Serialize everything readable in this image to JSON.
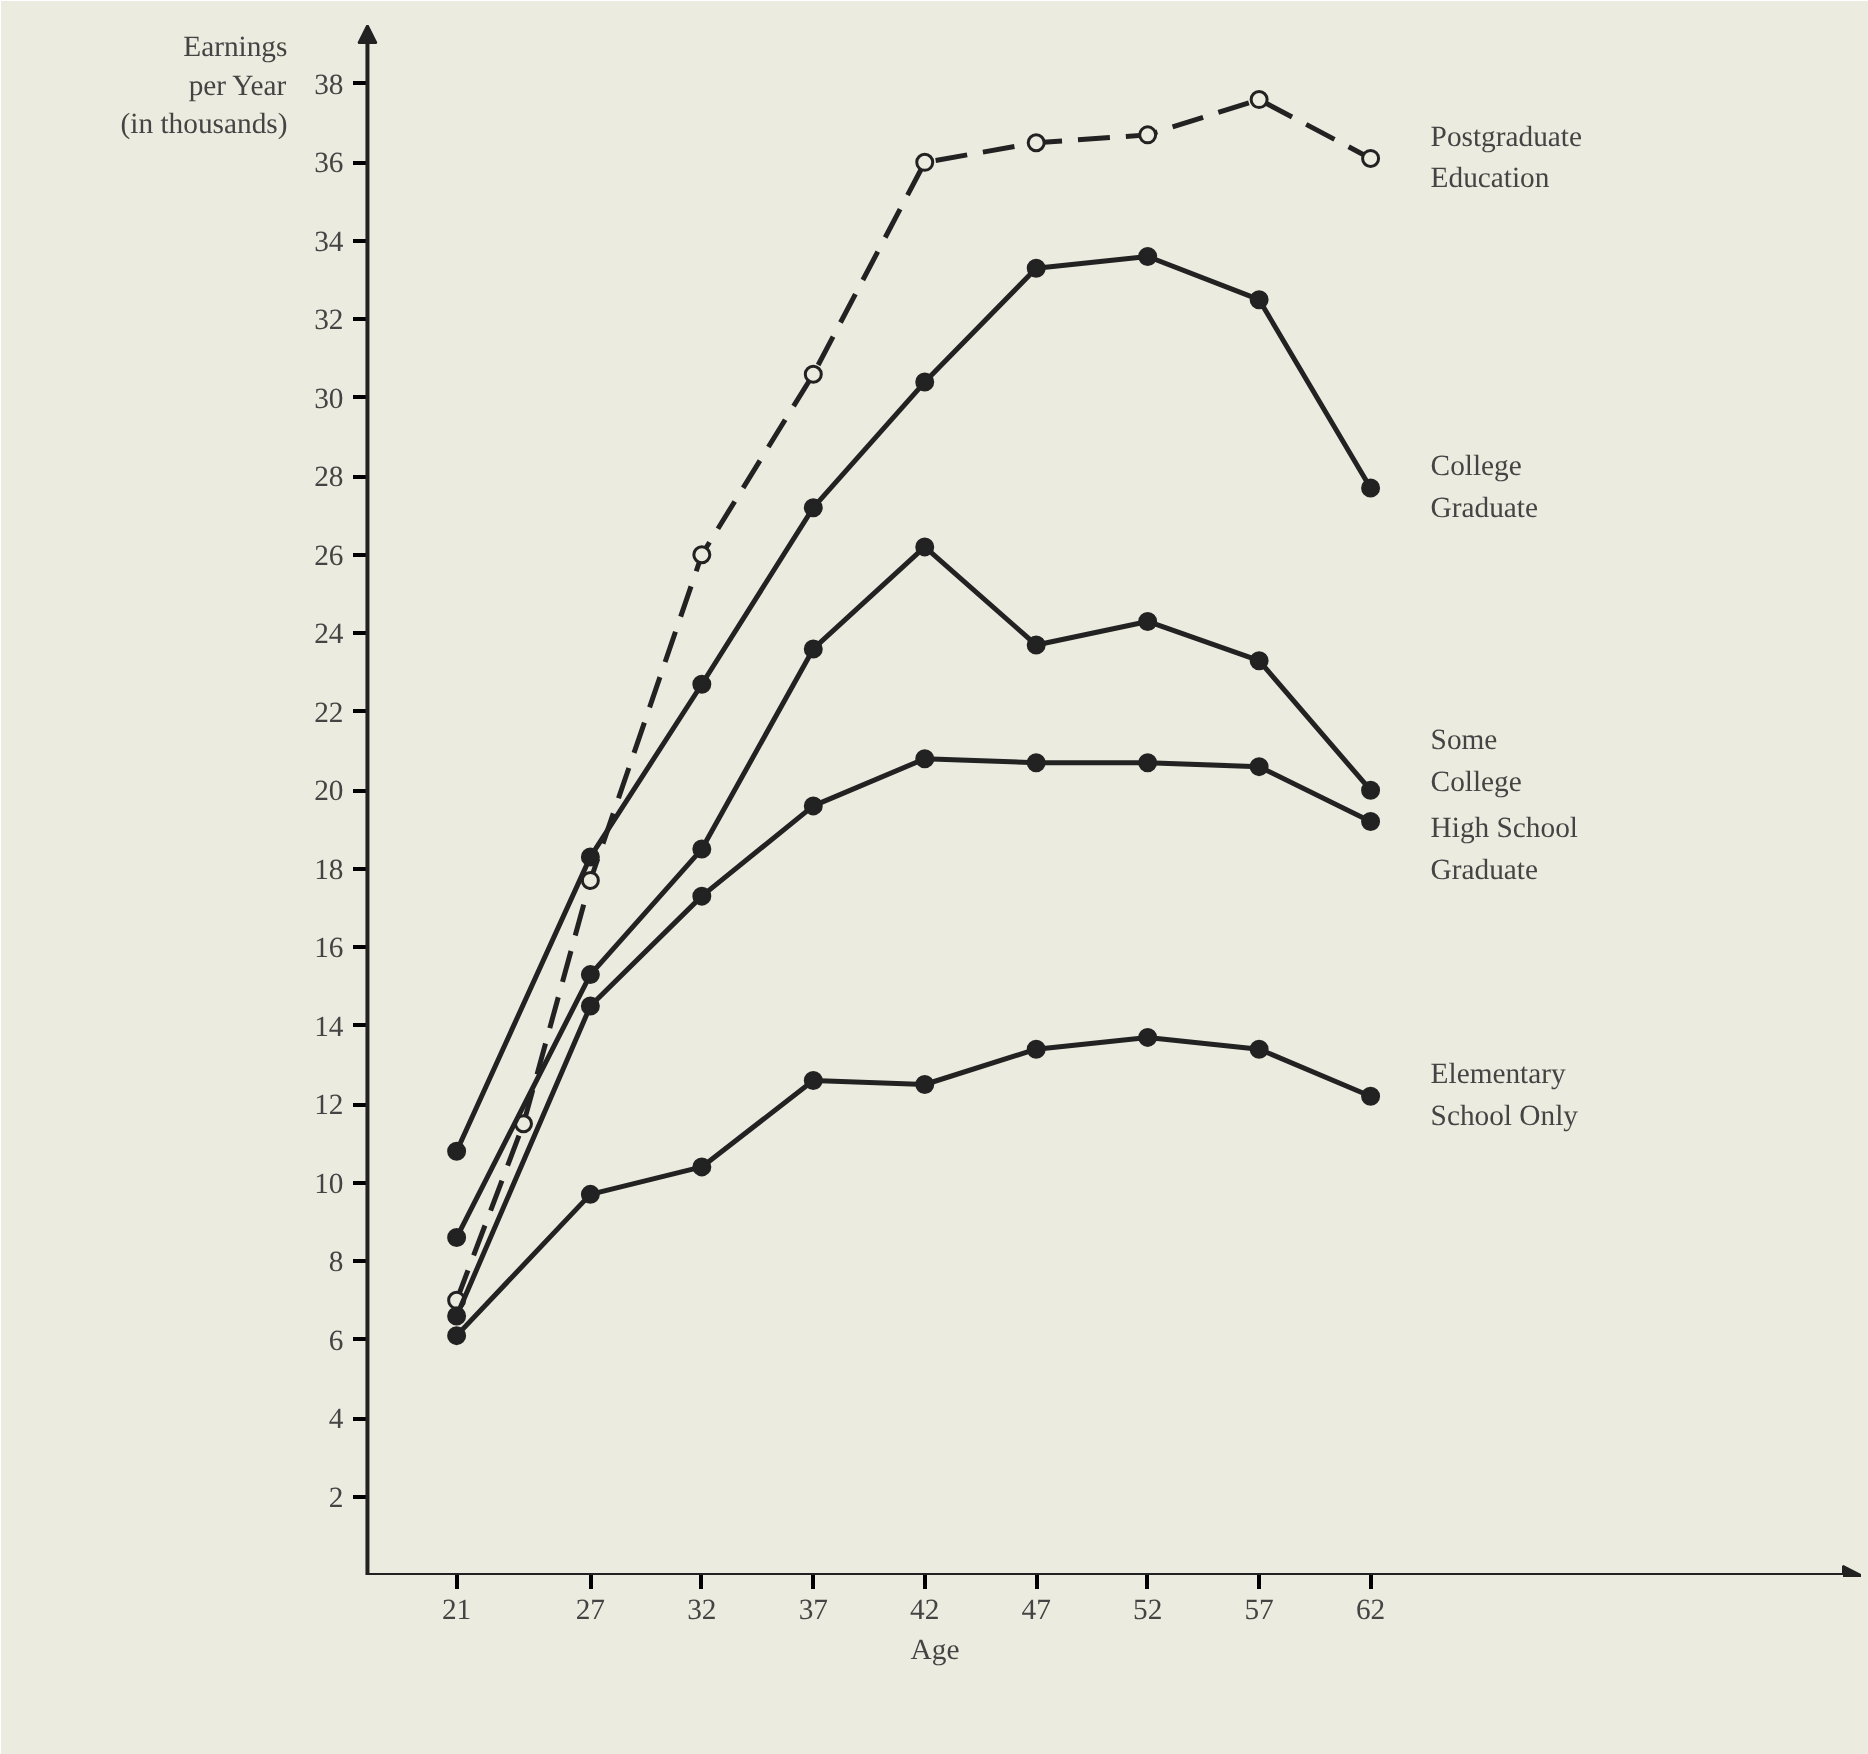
{
  "chart_data": {
    "type": "line",
    "xlabel": "Age",
    "ylabel": "Earnings\nper Year\n(in thousands)",
    "xlim": [
      17,
      84
    ],
    "ylim": [
      0,
      39.5
    ],
    "xticks": [
      21,
      27,
      32,
      37,
      42,
      47,
      52,
      57,
      62
    ],
    "yticks": [
      2,
      4,
      6,
      8,
      10,
      12,
      14,
      16,
      18,
      20,
      22,
      24,
      26,
      28,
      30,
      32,
      34,
      36,
      38
    ],
    "grid": false,
    "marker": "circle",
    "series": [
      {
        "name": "Postgraduate\nEducation",
        "color": "#222222",
        "line_style": "dashed",
        "marker": "open_circle",
        "x": [
          21,
          24,
          27,
          32,
          37,
          42,
          47,
          52,
          57,
          62
        ],
        "values": [
          7.0,
          11.5,
          17.7,
          26.0,
          30.6,
          36.0,
          36.5,
          36.7,
          37.6,
          36.1
        ]
      },
      {
        "name": "College\nGraduate",
        "color": "#222222",
        "x": [
          21,
          27,
          32,
          37,
          42,
          47,
          52,
          57,
          62
        ],
        "values": [
          10.8,
          18.3,
          22.7,
          27.2,
          30.4,
          33.3,
          33.6,
          32.5,
          27.7
        ]
      },
      {
        "name": "Some\nCollege",
        "color": "#222222",
        "x": [
          21,
          27,
          32,
          37,
          42,
          47,
          52,
          57,
          62
        ],
        "values": [
          8.6,
          15.3,
          18.5,
          23.6,
          26.2,
          23.7,
          24.3,
          23.3,
          20.0
        ]
      },
      {
        "name": "High School\nGraduate",
        "color": "#222222",
        "x": [
          21,
          27,
          32,
          37,
          42,
          47,
          52,
          57,
          62
        ],
        "values": [
          6.6,
          14.5,
          17.3,
          19.6,
          20.8,
          20.7,
          20.7,
          20.6,
          19.2
        ]
      },
      {
        "name": "Elementary\nSchool Only",
        "color": "#222222",
        "x": [
          21,
          27,
          32,
          37,
          42,
          47,
          52,
          57,
          62
        ],
        "values": [
          6.1,
          9.7,
          10.4,
          12.6,
          12.5,
          13.4,
          13.7,
          13.4,
          12.2
        ]
      }
    ]
  }
}
